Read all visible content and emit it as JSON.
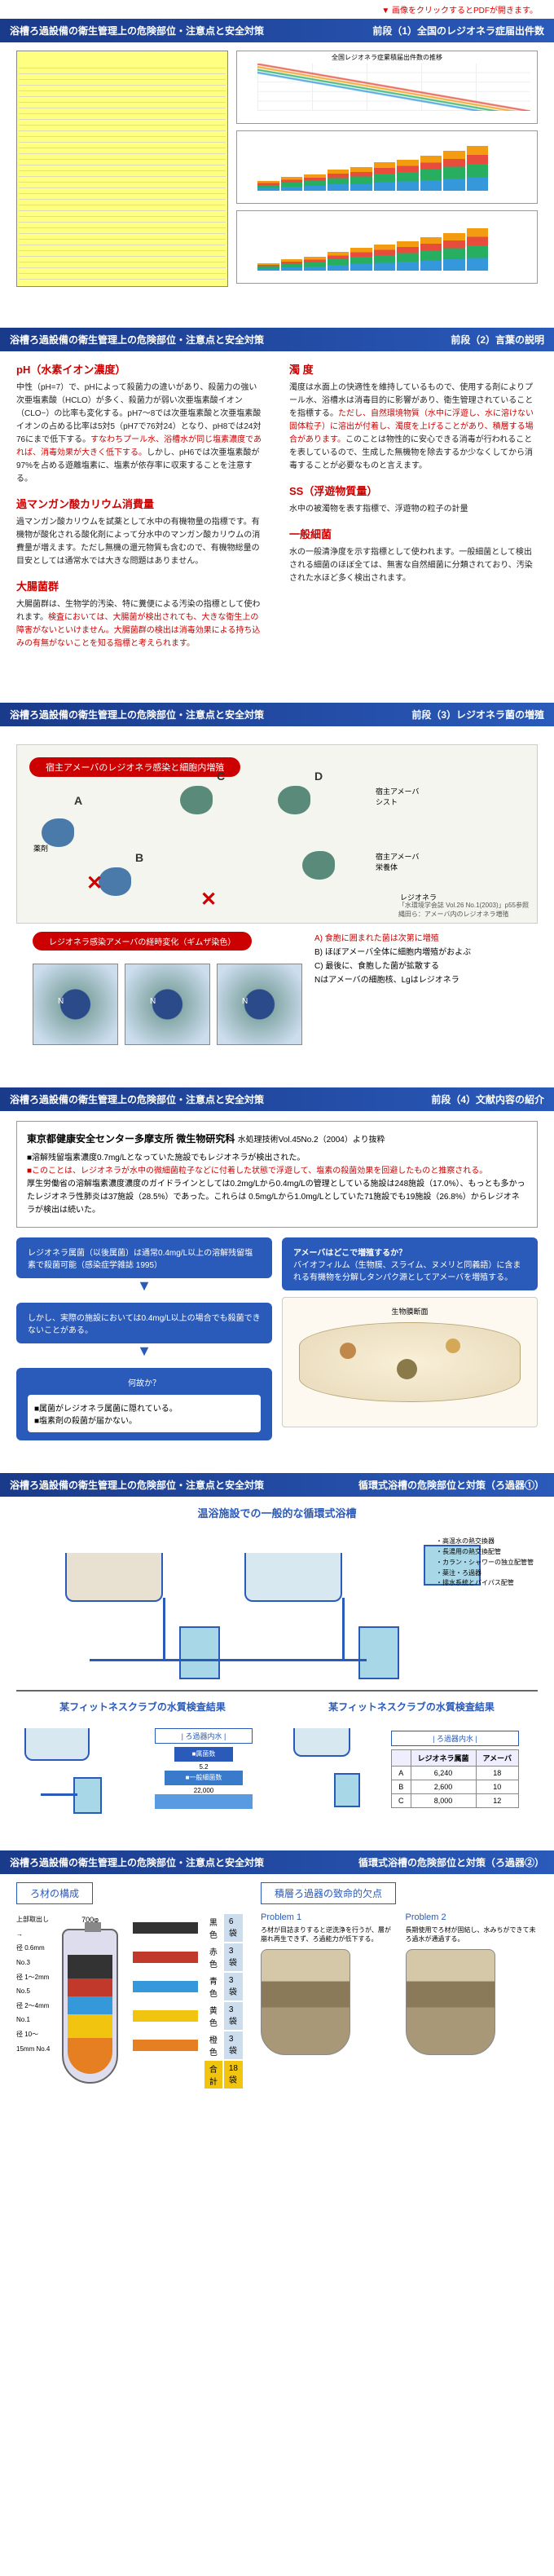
{
  "note": "▼ 画像をクリックするとPDFが開きます。",
  "main_title": "浴槽ろ過設備の衛生管理上の危険部位・注意点と安全対策",
  "sections": {
    "s1": {
      "right": "前段（1）全国のレジオネラ症届出件数"
    },
    "s2": {
      "right": "前段（2）言葉の説明",
      "terms": [
        {
          "t": "pH（水素イオン濃度）",
          "b": "中性（pH=7）で、pHによって殺菌力の違いがあり、殺菌力の強い次亜塩素酸（HCLO）が多く、殺菌力が弱い次亜塩素酸イオン（CLO−）の比率も変化する。pH7〜8では次亜塩素酸と次亜塩素酸イオンの占める比率は5対5（pH7で76対24）となり、pH8では24対76にまで低下する。<span class='hl'>すなわちプール水、浴槽水が同じ塩素濃度であれば、消毒効果が大きく低下する。</span>しかし、pH6では次亜塩素酸が97%を占める遊離塩素に、塩素が依存率に収束することを注意する。"
        },
        {
          "t": "過マンガン酸カリウム消費量",
          "b": "過マンガン酸カリウムを試薬として水中の有機物量の指標です。有機物が酸化される酸化剤によって分水中のマンガン酸カリウムの消費量が増えます。ただし無機の還元物質も含むので、有機物総量の目安としては通常水では大きな問題はありません。"
        },
        {
          "t": "大腸菌群",
          "b": "大腸菌群は、生物学的汚染、特に糞便による汚染の指標として使われます。<span class='hl'>検査においては、大腸菌が検出されても、大きな衛生上の障害がないといけません。大腸菌群の検出は消毒効果による持ち込みの有無がないことを知る指標と考えられます。</span>"
        },
        {
          "t": "濁 度",
          "b": "濁度は水面上の快適性を維持しているもので、使用する剤によりプール水、浴槽水は消毒目的に影響があり、衛生管理されていることを指標する。<span class='hl'>ただし、自然環境物質（水中に浮遊し、水に溶けない固体粒子）に溶出が付着し、濁度を上げることがあり、積層する場合があります。</span>このことは物性的に安心できる消毒が行われることを表しているので、生成した無機物を除去するか少なくしてから消毒することが必要なものと言えます。"
        },
        {
          "t": "SS（浮遊物質量）",
          "b": "水中の被濁物を表す指標で、浮遊物の粒子の計量"
        },
        {
          "t": "一般細菌",
          "b": "水の一般清浄度を示す指標として使われます。一般細菌として検出される細菌のほぼ全ては、無害な自然細菌に分類されており、汚染された水ほど多く検出されます。"
        }
      ]
    },
    "s3": {
      "right": "前段（3）レジオネラ菌の増殖",
      "diag_title": "宿主アメーバのレジオネラ感染と細胞内増殖",
      "labels": [
        "宿主アメーバ\nシスト",
        "薬剤",
        "宿主アメーバ\n栄養体",
        "レジオネラ"
      ],
      "cite": "「水環境学会誌 Vol.26 No.1(2003)」p55参照\n縄田ら：アメーバ内のレジオネラ増殖",
      "legend": [
        "A) 食胞に囲まれた菌は次第に増殖",
        "B) ほぼアメーバ全体に細胞内増殖がおよぶ",
        "C) 最後に、食胞した菌が拡散する",
        "Nはアメーバの細胞核、Lgはレジオネラ"
      ],
      "micro_title": "レジオネラ感染アメーバの経時変化（ギムザ染色）"
    },
    "s4": {
      "right": "前段（4）文献内容の紹介",
      "ref_title": "東京都健康安全センター多摩支所 微生物研究科",
      "ref_sub": "水処理技術Vol.45No.2（2004）より抜粋",
      "ref_line1": "■溶解残留塩素濃度0.7mg/Lとなっていた施設でもレジオネラが検出された。",
      "ref_line2": "■このことは、レジオネラが水中の微細菌粒子などに付着した状態で浮遊して、塩素の殺菌効果を回避したものと推察される。",
      "ref_line3": "厚生労働省の溶解塩素濃度濃度のガイドラインとしては0.2mg/Lから0.4mg/Lの管理としている施設は248施設（17.0%）、もっとも多かったレジオネラ性肺炎は37施設（28.5%）であった。これらは 0.5mg/Lから1.0mg/Lとしていた71施設でも19施設（26.8%）からレジオネラが検出は続いた。",
      "panel1_t": "レジオネラ属菌（以後属菌）は通常0.4mg/L以上の溶解残留塩素で殺菌可能（感染症学雑誌 1995）",
      "panel1_b": "しかし、実際の施設においては0.4mg/L以上の場合でも殺菌できないことがある。",
      "why": "何故か？",
      "why_items": [
        "■属菌がレジオネラ属菌に隠れている。",
        "■塩素剤の殺菌が届かない。"
      ],
      "panel2_t": "アメーバはどこで増殖するか？",
      "panel2_b": "バイオフィルム（生物膜、スライム、ヌメリと同義語）に含まれる有機物を分解しタンパク源としてアメーバを増殖する。"
    },
    "s5": {
      "right": "循環式浴槽の危険部位と対策（ろ過器①）",
      "bath_title": "温浴施設での一般的な循環式浴槽",
      "callouts": [
        "高温水の熱交換器",
        "長湯用の熱交換配管",
        "カラン・シャワーの独立配管管",
        "薬注・ろ過器",
        "排水系統とバイパス配管"
      ],
      "r1": "某フィットネスクラブの水質検査結果",
      "r2": "某フィットネスクラブの水質検査結果",
      "pyramid": [
        {
          "label": "属菌数",
          "sub": "5.2"
        },
        {
          "label": "一般細菌数",
          "sub": "22,000"
        },
        {
          "label": "ろ過器内水",
          "sub": ""
        }
      ],
      "table": {
        "head": [
          "",
          "レジオネラ属菌",
          "アメーバ"
        ],
        "rows": [
          [
            "A",
            "6,240",
            "18"
          ],
          [
            "B",
            "2,600",
            "10"
          ],
          [
            "C",
            "8,000",
            "12"
          ]
        ],
        "title": "| ろ過器内水 |"
      }
    },
    "s6": {
      "right": "循環式浴槽の危険部位と対策（ろ過器②）",
      "left_t": "ろ材の構成",
      "right_t": "積層ろ過器の致命的欠点",
      "media": [
        {
          "c": "#333",
          "n": "黒色",
          "q": "6 袋"
        },
        {
          "c": "#c0392b",
          "n": "赤色",
          "q": "3 袋"
        },
        {
          "c": "#3498db",
          "n": "青色",
          "q": "3 袋"
        },
        {
          "c": "#f1c40f",
          "n": "黄色",
          "q": "3 袋"
        },
        {
          "c": "#e67e22",
          "n": "橙色",
          "q": "3 袋"
        }
      ],
      "total": {
        "n": "合計",
        "q": "18 袋"
      },
      "dims": [
        "径 0.6mm No.3",
        "径 1〜2mm No.5",
        "径 2〜4mm No.1",
        "径 10〜15mm No.4"
      ],
      "problems": [
        "Problem 1",
        "Problem 2"
      ]
    }
  }
}
